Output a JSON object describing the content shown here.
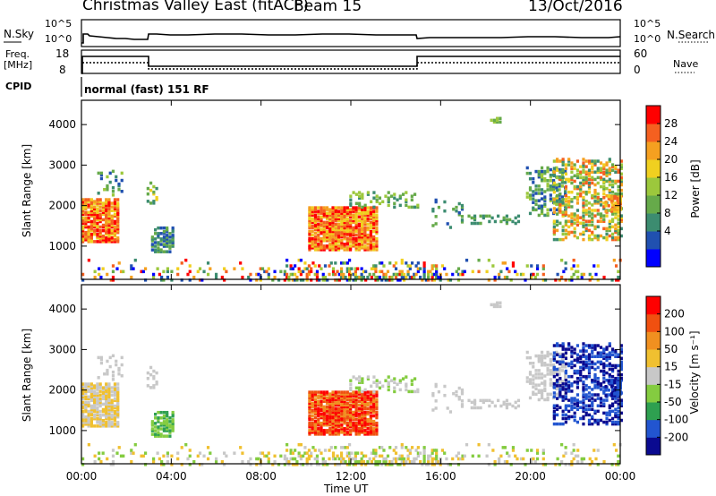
{
  "header": {
    "title": "Christmas Valley East (fitACF)",
    "beam": "Beam 15",
    "date": "13/Oct/2016"
  },
  "top_panels": {
    "nsky_label": "N.Sky",
    "nsearch_label": "N.Search",
    "nsky_ticks": [
      "10^5",
      "10^0"
    ],
    "nsearch_ticks": [
      "10^5",
      "10^0"
    ],
    "freq_label": "Freq.",
    "freq_unit": "[MHz]",
    "freq_ticks": [
      "18",
      "8"
    ],
    "nave_label": "Nave",
    "nave_ticks": [
      "60",
      "0"
    ],
    "cpid_label": "CPID",
    "cpid_text": "normal (fast) 151 RF"
  },
  "chart_data": [
    {
      "type": "heatmap",
      "ylabel": "Slant Range [km]",
      "yticks": [
        "4000",
        "3000",
        "2000",
        "1000"
      ],
      "ylim": [
        180,
        4600
      ],
      "colorbar_label": "Power [dB]",
      "colorbar_ticks": [
        "28",
        "24",
        "20",
        "16",
        "12",
        "8",
        "4"
      ],
      "colors": [
        "#0000ff",
        "#2050b0",
        "#3c8c70",
        "#66aa4a",
        "#9cc83c",
        "#f0d020",
        "#f5a020",
        "#f56020",
        "#ff0000"
      ]
    },
    {
      "type": "heatmap",
      "ylabel": "Slant Range [km]",
      "yticks": [
        "4000",
        "3000",
        "2000",
        "1000"
      ],
      "ylim": [
        180,
        4600
      ],
      "xlabel": "Time UT",
      "xticks": [
        "00:00",
        "04:00",
        "08:00",
        "12:00",
        "16:00",
        "20:00",
        "00:00"
      ],
      "colorbar_label": "Velocity [m s⁻¹]",
      "colorbar_ticks": [
        "200",
        "100",
        "50",
        "15",
        "-15",
        "-50",
        "-100",
        "-200"
      ],
      "colors": [
        "#0a0a90",
        "#2255d0",
        "#2ea050",
        "#84cc40",
        "#c8c8c8",
        "#f0c030",
        "#f09020",
        "#f05010",
        "#ff0000"
      ]
    }
  ]
}
